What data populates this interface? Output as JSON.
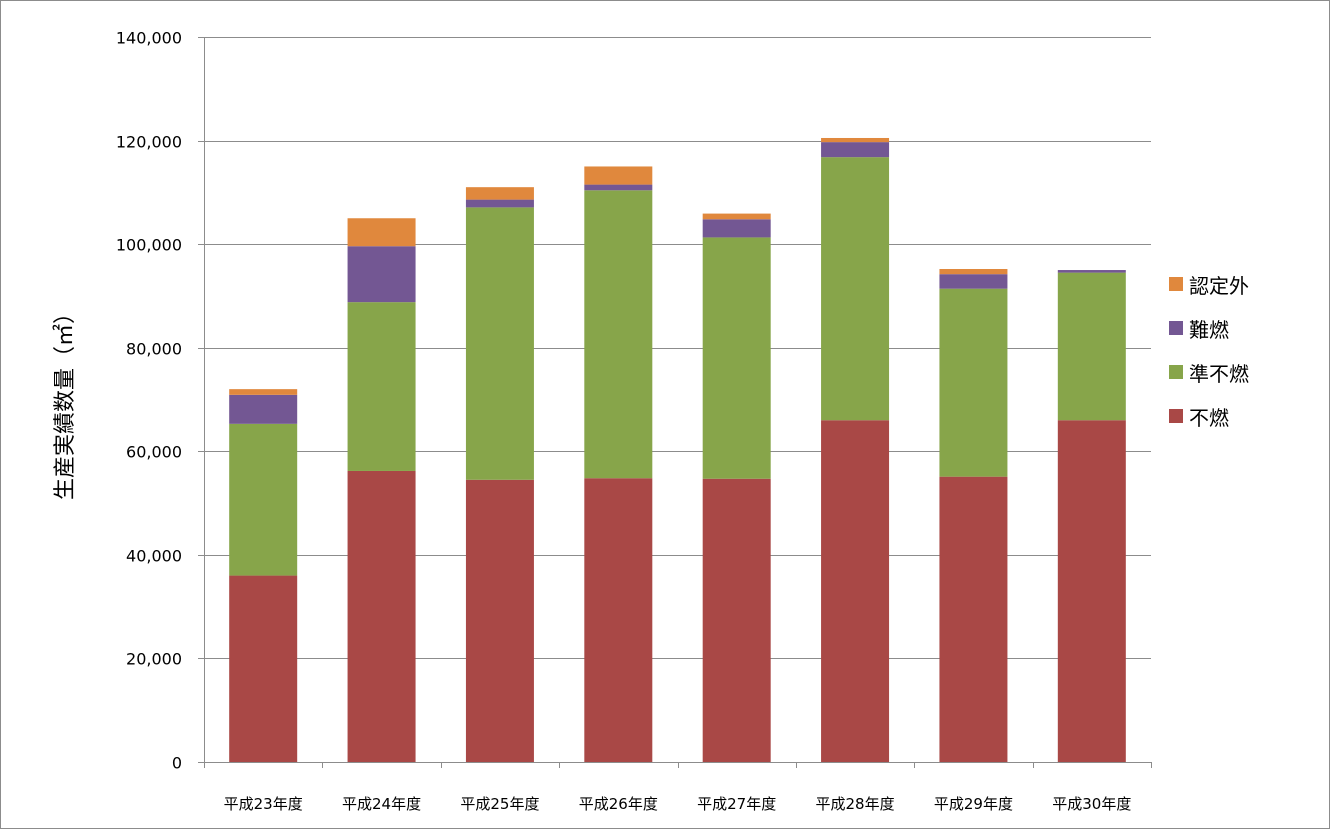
{
  "chart_data": {
    "type": "bar",
    "stacked": true,
    "title": "",
    "xlabel": "",
    "ylabel": "生産実績数量（㎡）",
    "ylim": [
      0,
      140000
    ],
    "yticks": [
      0,
      20000,
      40000,
      60000,
      80000,
      100000,
      120000,
      140000
    ],
    "ytick_labels": [
      "0",
      "20,000",
      "40,000",
      "60,000",
      "80,000",
      "100,000",
      "120,000",
      "140,000"
    ],
    "grid": true,
    "legend_position": "right",
    "categories": [
      "平成23年度",
      "平成24年度",
      "平成25年度",
      "平成26年度",
      "平成27年度",
      "平成28年度",
      "平成29年度",
      "平成30年度"
    ],
    "series": [
      {
        "name": "不燃",
        "color": "#a94846",
        "values": [
          36000,
          56200,
          54500,
          54800,
          54700,
          66000,
          55100,
          66000
        ]
      },
      {
        "name": "準不燃",
        "color": "#87a54a",
        "values": [
          29300,
          32600,
          52600,
          55600,
          46600,
          50800,
          36300,
          28500
        ]
      },
      {
        "name": "難燃",
        "color": "#735793",
        "values": [
          5600,
          10800,
          1500,
          1100,
          3500,
          2900,
          2800,
          500
        ]
      },
      {
        "name": "認定外",
        "color": "#e0883d",
        "values": [
          1100,
          5400,
          2400,
          3500,
          1100,
          800,
          1000,
          0
        ]
      }
    ],
    "legend_order": [
      "認定外",
      "難燃",
      "準不燃",
      "不燃"
    ]
  }
}
